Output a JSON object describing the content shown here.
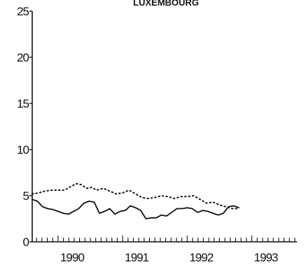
{
  "chart_data": {
    "type": "line",
    "title": "LUXEMBOURG",
    "xlabel": "",
    "ylabel": "",
    "xlim": [
      1989.6,
      1993.7
    ],
    "ylim": [
      0,
      25
    ],
    "yticks": [
      0,
      5,
      10,
      15,
      20,
      25
    ],
    "xtick_labels": [
      {
        "label": "1990",
        "x": 1990.0
      },
      {
        "label": "1991",
        "x": 1991.0
      },
      {
        "label": "1992",
        "x": 1992.0
      },
      {
        "label": "1993",
        "x": 1993.0
      }
    ],
    "minor_ticks_per_year": 12,
    "grid": false,
    "legend": "none",
    "series": [
      {
        "style": "solid",
        "color": "#111111",
        "x": [
          1989.6,
          1989.68,
          1989.76,
          1989.84,
          1989.92,
          1990.0,
          1990.08,
          1990.16,
          1990.24,
          1990.32,
          1990.4,
          1990.48,
          1990.56,
          1990.64,
          1990.72,
          1990.8,
          1990.88,
          1990.96,
          1991.04,
          1991.12,
          1991.2,
          1991.28,
          1991.36,
          1991.44,
          1991.52,
          1991.6,
          1991.68,
          1991.76,
          1991.84,
          1991.92,
          1992.0,
          1992.08,
          1992.16,
          1992.24,
          1992.32,
          1992.4,
          1992.48,
          1992.56,
          1992.64,
          1992.72,
          1992.8
        ],
        "values": [
          4.6,
          4.4,
          3.8,
          3.6,
          3.5,
          3.3,
          3.1,
          3.0,
          3.3,
          3.6,
          4.2,
          4.4,
          4.3,
          3.1,
          3.3,
          3.6,
          3.0,
          3.3,
          3.4,
          3.9,
          3.7,
          3.4,
          2.5,
          2.6,
          2.6,
          2.9,
          2.8,
          3.2,
          3.6,
          3.6,
          3.7,
          3.6,
          3.2,
          3.4,
          3.3,
          3.1,
          2.9,
          3.1,
          3.8,
          3.9,
          3.7
        ]
      },
      {
        "style": "dotted",
        "color": "#111111",
        "x": [
          1989.6,
          1989.7,
          1989.8,
          1989.9,
          1990.0,
          1990.1,
          1990.2,
          1990.28,
          1990.36,
          1990.44,
          1990.52,
          1990.6,
          1990.7,
          1990.8,
          1990.9,
          1991.0,
          1991.1,
          1991.2,
          1991.3,
          1991.4,
          1991.5,
          1991.6,
          1991.7,
          1991.8,
          1991.9,
          1992.0,
          1992.1,
          1992.2,
          1992.3,
          1992.4,
          1992.5,
          1992.6,
          1992.7,
          1992.8
        ],
        "values": [
          5.2,
          5.3,
          5.5,
          5.6,
          5.6,
          5.6,
          6.0,
          6.3,
          6.2,
          5.8,
          5.9,
          5.6,
          5.8,
          5.5,
          5.2,
          5.3,
          5.6,
          5.2,
          4.8,
          4.7,
          4.8,
          5.0,
          4.9,
          4.7,
          4.9,
          4.9,
          5.0,
          4.6,
          4.2,
          4.3,
          4.0,
          3.8,
          3.6,
          3.6
        ]
      }
    ]
  }
}
